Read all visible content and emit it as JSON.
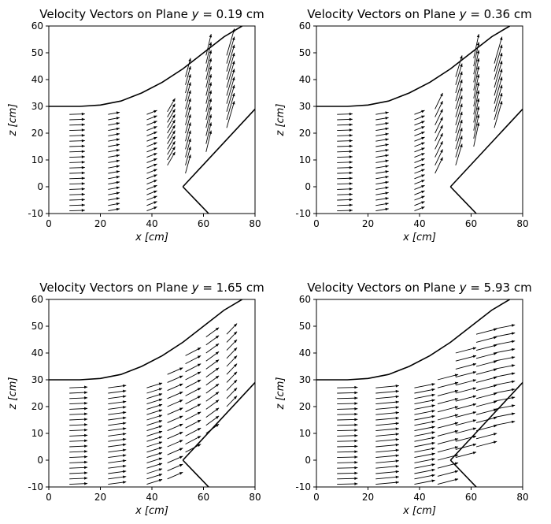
{
  "figure": {
    "title_prefix": "Velocity Vectors on Plane",
    "title_var": "y",
    "title_eq": " = "
  },
  "chart_data": [
    {
      "type": "quiver",
      "title": "Velocity Vectors on Plane y = 0.19 cm",
      "plane_value": "0.19",
      "unit": "cm",
      "xlabel_var": "x",
      "xlabel_unit": "[cm]",
      "ylabel_var": "z",
      "ylabel_unit": "[cm]",
      "xlim": [
        0,
        80
      ],
      "ylim": [
        -10,
        60
      ],
      "xticks": [
        0,
        20,
        40,
        60,
        80
      ],
      "yticks": [
        -10,
        0,
        10,
        20,
        30,
        40,
        50,
        60
      ],
      "walls": [
        [
          [
            0,
            30
          ],
          [
            12,
            30
          ],
          [
            20,
            30.5
          ],
          [
            28,
            32
          ],
          [
            36,
            35
          ],
          [
            44,
            39
          ],
          [
            52,
            44
          ],
          [
            60,
            50
          ],
          [
            68,
            56
          ],
          [
            75,
            60
          ]
        ],
        [
          [
            52,
            0
          ],
          [
            80,
            29
          ]
        ],
        [
          [
            52,
            0
          ],
          [
            62,
            -10
          ]
        ]
      ],
      "columns": [
        {
          "x": 8,
          "z": [
            -9,
            -7,
            -5,
            -3,
            -1,
            1,
            3,
            5,
            7,
            9,
            11,
            13,
            15,
            17,
            19,
            21,
            23,
            25,
            27
          ],
          "u": 6,
          "w": 0.2
        },
        {
          "x": 23,
          "z": [
            -9,
            -7,
            -5,
            -3,
            -1,
            1,
            3,
            5,
            7,
            9,
            11,
            13,
            15,
            17,
            19,
            21,
            23,
            25,
            27
          ],
          "u": 4.5,
          "w": 0.8
        },
        {
          "x": 38,
          "z": [
            -9,
            -7,
            -5,
            -3,
            -1,
            1,
            3,
            5,
            7,
            9,
            11,
            13,
            15,
            17,
            19,
            21,
            23,
            25,
            27
          ],
          "u": 4,
          "w": 1.5
        },
        {
          "x": 46,
          "z": [
            8,
            10,
            12,
            14,
            16,
            18,
            20,
            22,
            24,
            26,
            28
          ],
          "u": 3,
          "w": 5
        },
        {
          "x": 53,
          "z": [
            5,
            8,
            11,
            14,
            17,
            20,
            23,
            26,
            29,
            32,
            35,
            38,
            41
          ],
          "u": 2,
          "w": 7
        },
        {
          "x": 61,
          "z": [
            13,
            16,
            19,
            22,
            25,
            28,
            31,
            34,
            37,
            40,
            43,
            46,
            49
          ],
          "u": 2,
          "w": 8
        },
        {
          "x": 69,
          "z": [
            22,
            25,
            28,
            31,
            34,
            37,
            40,
            43,
            46,
            49
          ],
          "u": 3,
          "w": 10
        }
      ]
    },
    {
      "type": "quiver",
      "title": "Velocity Vectors on Plane y = 0.36 cm",
      "plane_value": "0.36",
      "unit": "cm",
      "xlabel_var": "x",
      "xlabel_unit": "[cm]",
      "ylabel_var": "z",
      "ylabel_unit": "[cm]",
      "xlim": [
        0,
        80
      ],
      "ylim": [
        -10,
        60
      ],
      "xticks": [
        0,
        20,
        40,
        60,
        80
      ],
      "yticks": [
        -10,
        0,
        10,
        20,
        30,
        40,
        50,
        60
      ],
      "walls": [
        [
          [
            0,
            30
          ],
          [
            12,
            30
          ],
          [
            20,
            30.5
          ],
          [
            28,
            32
          ],
          [
            36,
            35
          ],
          [
            44,
            39
          ],
          [
            52,
            44
          ],
          [
            60,
            50
          ],
          [
            68,
            56
          ],
          [
            75,
            60
          ]
        ],
        [
          [
            52,
            0
          ],
          [
            80,
            29
          ]
        ],
        [
          [
            52,
            0
          ],
          [
            62,
            -10
          ]
        ]
      ],
      "columns": [
        {
          "x": 8,
          "z": [
            -9,
            -7,
            -5,
            -3,
            -1,
            1,
            3,
            5,
            7,
            9,
            11,
            13,
            15,
            17,
            19,
            21,
            23,
            25,
            27
          ],
          "u": 6,
          "w": 0.2
        },
        {
          "x": 23,
          "z": [
            -9,
            -7,
            -5,
            -3,
            -1,
            1,
            3,
            5,
            7,
            9,
            11,
            13,
            15,
            17,
            19,
            21,
            23,
            25,
            27
          ],
          "u": 5,
          "w": 0.8
        },
        {
          "x": 38,
          "z": [
            -9,
            -7,
            -5,
            -3,
            -1,
            1,
            3,
            5,
            7,
            9,
            11,
            13,
            15,
            17,
            19,
            21,
            23,
            25,
            27
          ],
          "u": 4,
          "w": 1.5
        },
        {
          "x": 46,
          "z": [
            5,
            8,
            11,
            14,
            17,
            20,
            23,
            26,
            29
          ],
          "u": 3,
          "w": 6
        },
        {
          "x": 54,
          "z": [
            8,
            11,
            14,
            17,
            20,
            23,
            26,
            29,
            32,
            35,
            38,
            41
          ],
          "u": 2.5,
          "w": 8
        },
        {
          "x": 61,
          "z": [
            15,
            18,
            21,
            24,
            27,
            30,
            33,
            36,
            39,
            42,
            45,
            48
          ],
          "u": 2,
          "w": 9
        },
        {
          "x": 69,
          "z": [
            22,
            25,
            28,
            31,
            34,
            37,
            40,
            43,
            46
          ],
          "u": 3,
          "w": 10
        }
      ]
    },
    {
      "type": "quiver",
      "title": "Velocity Vectors on Plane y = 1.65 cm",
      "plane_value": "1.65",
      "unit": "cm",
      "xlabel_var": "x",
      "xlabel_unit": "[cm]",
      "ylabel_var": "z",
      "ylabel_unit": "[cm]",
      "xlim": [
        0,
        80
      ],
      "ylim": [
        -10,
        60
      ],
      "xticks": [
        0,
        20,
        40,
        60,
        80
      ],
      "yticks": [
        -10,
        0,
        10,
        20,
        30,
        40,
        50,
        60
      ],
      "walls": [
        [
          [
            0,
            30
          ],
          [
            12,
            30
          ],
          [
            20,
            30.5
          ],
          [
            28,
            32
          ],
          [
            36,
            35
          ],
          [
            44,
            39
          ],
          [
            52,
            44
          ],
          [
            60,
            50
          ],
          [
            68,
            56
          ],
          [
            75,
            60
          ]
        ],
        [
          [
            52,
            0
          ],
          [
            80,
            29
          ]
        ],
        [
          [
            52,
            0
          ],
          [
            62,
            -10
          ]
        ]
      ],
      "columns": [
        {
          "x": 8,
          "z": [
            -9,
            -7,
            -5,
            -3,
            -1,
            1,
            3,
            5,
            7,
            9,
            11,
            13,
            15,
            17,
            19,
            21,
            23,
            25,
            27
          ],
          "u": 7,
          "w": 0.3
        },
        {
          "x": 23,
          "z": [
            -9,
            -7,
            -5,
            -3,
            -1,
            1,
            3,
            5,
            7,
            9,
            11,
            13,
            15,
            17,
            19,
            21,
            23,
            25,
            27
          ],
          "u": 7,
          "w": 0.9
        },
        {
          "x": 38,
          "z": [
            -9,
            -7,
            -5,
            -3,
            -1,
            1,
            3,
            5,
            7,
            9,
            11,
            13,
            15,
            17,
            19,
            21,
            23,
            25,
            27
          ],
          "u": 6,
          "w": 1.8
        },
        {
          "x": 46,
          "z": [
            -7,
            -4,
            -1,
            2,
            5,
            8,
            11,
            14,
            17,
            20,
            23,
            26,
            29,
            32
          ],
          "u": 6,
          "w": 2.5
        },
        {
          "x": 53,
          "z": [
            3,
            6,
            9,
            12,
            15,
            18,
            21,
            24,
            27,
            30,
            33,
            36,
            39
          ],
          "u": 6,
          "w": 3
        },
        {
          "x": 61,
          "z": [
            10,
            13,
            16,
            19,
            22,
            25,
            28,
            31,
            34,
            37,
            40,
            43,
            46
          ],
          "u": 5,
          "w": 3.5
        },
        {
          "x": 69,
          "z": [
            20,
            23,
            26,
            29,
            32,
            35,
            38,
            41,
            44,
            47
          ],
          "u": 4,
          "w": 4
        }
      ]
    },
    {
      "type": "quiver",
      "title": "Velocity Vectors on Plane y = 5.93 cm",
      "plane_value": "5.93",
      "unit": "cm",
      "xlabel_var": "x",
      "xlabel_unit": "[cm]",
      "ylabel_var": "z",
      "ylabel_unit": "[cm]",
      "xlim": [
        0,
        80
      ],
      "ylim": [
        -10,
        60
      ],
      "xticks": [
        0,
        20,
        40,
        60,
        80
      ],
      "yticks": [
        -10,
        0,
        10,
        20,
        30,
        40,
        50,
        60
      ],
      "walls": [
        [
          [
            0,
            30
          ],
          [
            12,
            30
          ],
          [
            20,
            30.5
          ],
          [
            28,
            32
          ],
          [
            36,
            35
          ],
          [
            44,
            39
          ],
          [
            52,
            44
          ],
          [
            60,
            50
          ],
          [
            68,
            56
          ],
          [
            75,
            60
          ]
        ],
        [
          [
            52,
            0
          ],
          [
            80,
            29
          ]
        ],
        [
          [
            52,
            0
          ],
          [
            62,
            -10
          ]
        ]
      ],
      "columns": [
        {
          "x": 8,
          "z": [
            -9,
            -7,
            -5,
            -3,
            -1,
            1,
            3,
            5,
            7,
            9,
            11,
            13,
            15,
            17,
            19,
            21,
            23,
            25,
            27
          ],
          "u": 8,
          "w": 0.2
        },
        {
          "x": 23,
          "z": [
            -9,
            -7,
            -5,
            -3,
            -1,
            1,
            3,
            5,
            7,
            9,
            11,
            13,
            15,
            17,
            19,
            21,
            23,
            25,
            27
          ],
          "u": 9,
          "w": 0.8
        },
        {
          "x": 38,
          "z": [
            -9,
            -7,
            -5,
            -3,
            -1,
            1,
            3,
            5,
            7,
            9,
            11,
            13,
            15,
            17,
            19,
            21,
            23,
            25,
            27
          ],
          "u": 8,
          "w": 1.5
        },
        {
          "x": 47,
          "z": [
            -9,
            -6,
            -3,
            0,
            3,
            6,
            9,
            12,
            15,
            18,
            21,
            24,
            27,
            30
          ],
          "u": 8,
          "w": 2
        },
        {
          "x": 54,
          "z": [
            1,
            4,
            7,
            10,
            13,
            16,
            19,
            22,
            25,
            28,
            31,
            34,
            37,
            40
          ],
          "u": 8,
          "w": 2
        },
        {
          "x": 62,
          "z": [
            5,
            8,
            11,
            14,
            17,
            20,
            23,
            26,
            29,
            32,
            35,
            38,
            41,
            44,
            47
          ],
          "u": 8,
          "w": 2
        },
        {
          "x": 69,
          "z": [
            13,
            16,
            19,
            22,
            25,
            28,
            31,
            34,
            37,
            40,
            43,
            46,
            49
          ],
          "u": 8,
          "w": 1.5
        }
      ]
    }
  ]
}
